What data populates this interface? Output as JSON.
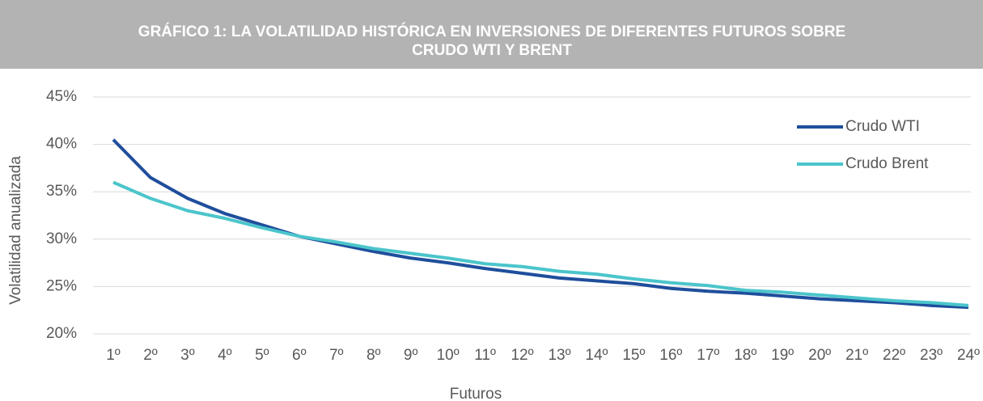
{
  "chart_data": {
    "type": "line",
    "title": [
      "GRÁFICO 1: LA VOLATILIDAD HISTÓRICA EN INVERSIONES DE DIFERENTES FUTUROS SOBRE",
      "CRUDO WTI Y BRENT"
    ],
    "x_label": "Futuros",
    "y_label": "Volatilidad anualizada",
    "categories": [
      "1º",
      "2º",
      "3º",
      "4º",
      "5º",
      "6º",
      "7º",
      "8º",
      "9º",
      "10º",
      "11º",
      "12º",
      "13º",
      "14º",
      "15º",
      "16º",
      "17º",
      "18º",
      "19º",
      "20º",
      "21º",
      "22º",
      "23º",
      "24º"
    ],
    "series": [
      {
        "name": "Crudo WTI",
        "color": "#1f4e9c",
        "values": [
          40.5,
          36.5,
          34.3,
          32.7,
          31.5,
          30.3,
          29.5,
          28.7,
          28.0,
          27.5,
          26.9,
          26.4,
          25.9,
          25.6,
          25.3,
          24.8,
          24.5,
          24.3,
          24.0,
          23.7,
          23.5,
          23.3,
          23.0,
          22.8
        ]
      },
      {
        "name": "Crudo Brent",
        "color": "#4bc5cb",
        "values": [
          36.0,
          34.3,
          33.0,
          32.2,
          31.2,
          30.3,
          29.7,
          29.0,
          28.5,
          28.0,
          27.4,
          27.1,
          26.6,
          26.3,
          25.8,
          25.4,
          25.1,
          24.6,
          24.4,
          24.1,
          23.8,
          23.5,
          23.3,
          23.0
        ]
      }
    ],
    "ylim": [
      20,
      45
    ],
    "yticks": [
      {
        "value": 20,
        "label": "20%"
      },
      {
        "value": 25,
        "label": "25%"
      },
      {
        "value": 30,
        "label": "30%"
      },
      {
        "value": 35,
        "label": "35%"
      },
      {
        "value": 40,
        "label": "40%"
      },
      {
        "value": 45,
        "label": "45%"
      }
    ],
    "grid": true,
    "legend": "upper right"
  }
}
